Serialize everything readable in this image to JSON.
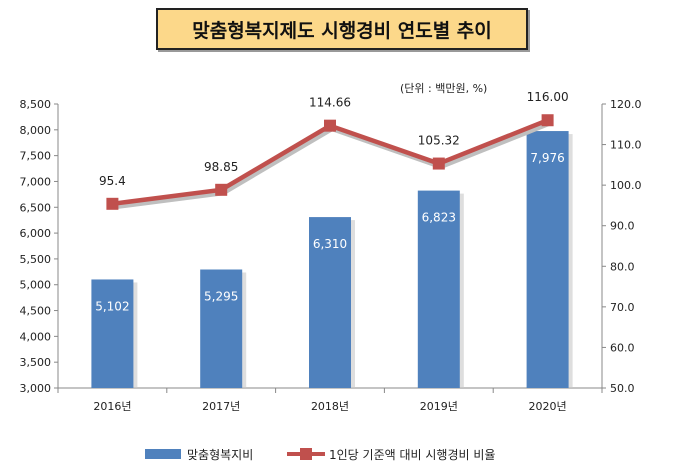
{
  "chart_data": {
    "type": "bar",
    "title": "맞춤형복지제도 시행경비 연도별 추이",
    "unit_note": "(단위 : 백만원, %)",
    "categories": [
      "2016년",
      "2017년",
      "2018년",
      "2019년",
      "2020년"
    ],
    "y_left": {
      "min": 3000,
      "max": 8500,
      "step": 500,
      "ticks": [
        "3,000",
        "3,500",
        "4,000",
        "4,500",
        "5,000",
        "5,500",
        "6,000",
        "6,500",
        "7,000",
        "7,500",
        "8,000",
        "8,500"
      ]
    },
    "y_right": {
      "min": 50.0,
      "max": 120.0,
      "step": 10,
      "ticks": [
        "50.0",
        "60.0",
        "70.0",
        "80.0",
        "90.0",
        "100.0",
        "110.0",
        "120.0"
      ]
    },
    "series": [
      {
        "name": "맞춤형복지비",
        "type": "bar",
        "axis": "left",
        "color": "#4f81bd",
        "values": [
          5102,
          5295,
          6310,
          6823,
          7976
        ],
        "labels": [
          "5,102",
          "5,295",
          "6,310",
          "6,823",
          "7,976"
        ]
      },
      {
        "name": "1인당 기준액 대비 시행경비 비율",
        "type": "line",
        "axis": "right",
        "color": "#c0504d",
        "values": [
          95.4,
          98.85,
          114.66,
          105.32,
          116.0
        ],
        "labels": [
          "95.4",
          "98.85",
          "114.66",
          "105.32",
          "116.00"
        ]
      }
    ],
    "legend": "bottom",
    "grid": false
  }
}
